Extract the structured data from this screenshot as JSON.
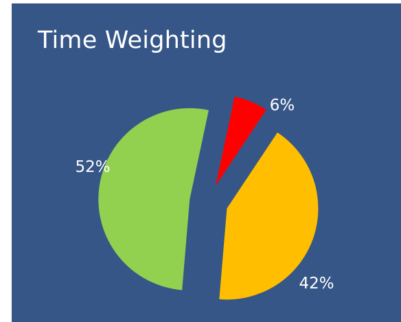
{
  "chart_data": {
    "type": "pie",
    "title": "Time Weighting",
    "exploded": true,
    "slices": [
      {
        "value": 6,
        "label": "6%",
        "color": "#ff0000"
      },
      {
        "value": 42,
        "label": "42%",
        "color": "#ffbf00"
      },
      {
        "value": 52,
        "label": "52%",
        "color": "#92d050"
      }
    ],
    "background_color": "#365687",
    "legend": "none",
    "grid": false
  }
}
